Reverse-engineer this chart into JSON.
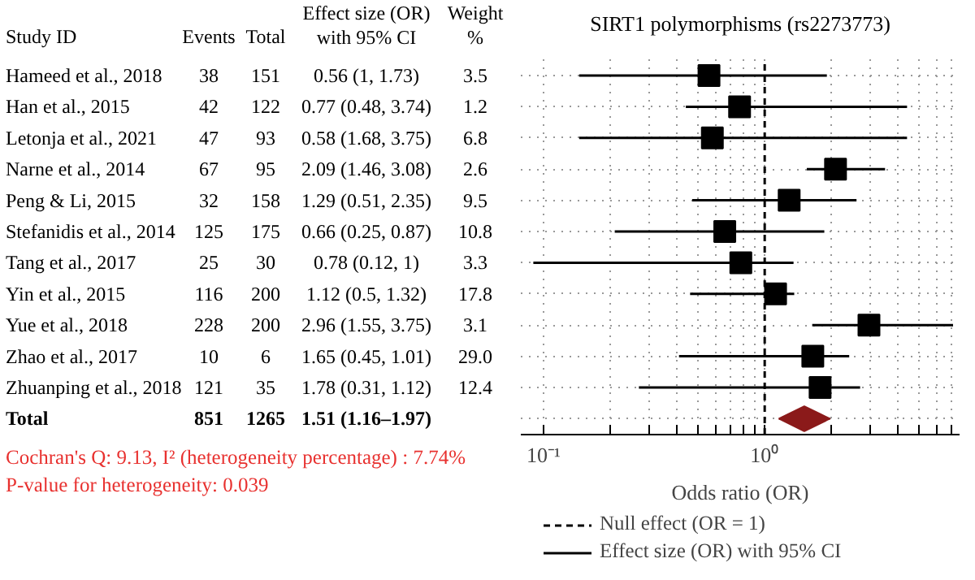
{
  "chart_data": [
    {
      "type": "other",
      "categories": [
        "Study ID",
        "Events",
        "Total",
        "Effect size (OR)\nwith 95% CI",
        "Weight\n%"
      ],
      "cell_labels": [
        [
          "Hameed et al., 2018",
          "38",
          "151",
          "0.56 (1, 1.73)",
          "3.5"
        ],
        [
          "Han et al., 2015",
          "42",
          "122",
          "0.77 (0.48, 3.74)",
          "1.2"
        ],
        [
          "Letonja et al., 2021",
          "47",
          "93",
          "0.58 (1.68, 3.75)",
          "6.8"
        ],
        [
          "Narne et al., 2014",
          "67",
          "95",
          "2.09 (1.46, 3.08)",
          "2.6"
        ],
        [
          "Peng & Li, 2015",
          "32",
          "158",
          "1.29 (0.51, 2.35)",
          "9.5"
        ],
        [
          "Stefanidis et al., 2014",
          "125",
          "175",
          "0.66 (0.25, 0.87)",
          "10.8"
        ],
        [
          "Tang et al., 2017",
          "25",
          "30",
          "0.78 (0.12, 1)",
          "3.3"
        ],
        [
          "Yin et al., 2015",
          "116",
          "200",
          "1.12 (0.5, 1.32)",
          "17.8"
        ],
        [
          "Yue et al., 2018",
          "228",
          "200",
          "2.96 (1.55, 3.75)",
          "3.1"
        ],
        [
          "Zhao et al., 2017",
          "10",
          "6",
          "1.65 (0.45, 1.01)",
          "29.0"
        ],
        [
          "Zhuanping et al., 2018",
          "121",
          "35",
          "1.78 (0.31, 1.12)",
          "12.4"
        ],
        [
          "Total",
          "851",
          "1265",
          "1.51 (1.16–1.97)",
          null
        ]
      ],
      "annotations": [
        "Cochran's Q: 9.13, I² (heterogeneity percentage) : 7.74%",
        "P-value for heterogeneity: 0.039"
      ]
    },
    {
      "type": "scatter",
      "title": "SIRT1 polymorphisms (rs2273773)",
      "xlabel": "Odds ratio (OR)",
      "orientation": "horizontal",
      "log": "x",
      "categories": [
        null,
        null,
        null,
        null,
        null,
        null,
        null,
        null,
        null,
        null,
        null,
        null
      ],
      "xlim": [
        0.079,
        7.6
      ],
      "xticks": [
        {
          "value": 0.1,
          "label": "10⁻¹"
        },
        {
          "value": 0.2,
          "label": null
        },
        {
          "value": 0.3,
          "label": null
        },
        {
          "value": 0.4,
          "label": null
        },
        {
          "value": 0.5,
          "label": null
        },
        {
          "value": 0.6,
          "label": null
        },
        {
          "value": 0.7,
          "label": null
        },
        {
          "value": 0.8,
          "label": null
        },
        {
          "value": 0.9,
          "label": null
        },
        {
          "value": 1,
          "label": "10⁰"
        },
        {
          "value": 2,
          "label": null
        },
        {
          "value": 3,
          "label": null
        },
        {
          "value": 4,
          "label": null
        },
        {
          "value": 5,
          "label": null
        },
        {
          "value": 6,
          "label": null
        },
        {
          "value": 7,
          "label": null
        }
      ],
      "grid": true,
      "tick_labels": "x",
      "legend": "bottom",
      "marker": "square",
      "ref_lines": [
        {
          "axis": "x",
          "value": 1,
          "label": "Null effect (OR = 1)",
          "line_style": "dashed",
          "color": "#000000"
        }
      ],
      "series": [
        {
          "name": "Effect size (OR) with 95% CI",
          "color": "#000000",
          "values": [
            0.56,
            0.77,
            0.58,
            2.09,
            1.29,
            0.66,
            0.78,
            1.12,
            2.96,
            1.65,
            1.78,
            null
          ],
          "errors": [
            [
              0.145,
              1.91
            ],
            [
              0.44,
              4.4
            ],
            [
              0.145,
              4.4
            ],
            [
              1.55,
              3.5
            ],
            [
              0.47,
              2.6
            ],
            [
              0.21,
              1.86
            ],
            [
              0.09,
              1.35
            ],
            [
              0.46,
              1.36
            ],
            [
              1.64,
              7.1
            ],
            [
              0.41,
              2.41
            ],
            [
              0.27,
              2.7
            ],
            null
          ]
        },
        {
          "color": "#8b1a1a",
          "marker": "diamond",
          "values": [
            null,
            null,
            null,
            null,
            null,
            null,
            null,
            null,
            null,
            null,
            null,
            1.51
          ],
          "errors": [
            null,
            null,
            null,
            null,
            null,
            null,
            null,
            null,
            null,
            null,
            null,
            [
              1.16,
              1.97
            ]
          ]
        }
      ]
    }
  ]
}
